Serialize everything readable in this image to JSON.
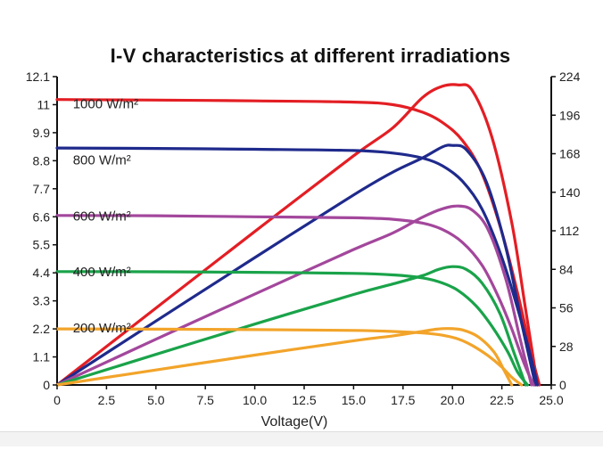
{
  "chart_data": {
    "type": "line",
    "title": "I-V characteristics at different irradiations",
    "xlabel": "Voltage(V)",
    "ylabel": "",
    "y2label": "",
    "xlim": [
      0,
      25
    ],
    "ylim": [
      0,
      12.1
    ],
    "y2lim": [
      0,
      224
    ],
    "x_ticks": [
      "0",
      "2.5",
      "5.0",
      "7.5",
      "10.0",
      "12.5",
      "15.0",
      "17.5",
      "20.0",
      "22.5",
      "25.0"
    ],
    "y_ticks": [
      "0",
      "1.1",
      "2.2",
      "3.3",
      "4.4",
      "5.5",
      "6.6",
      "7.7",
      "8.8",
      "9.9",
      "11",
      "12.1"
    ],
    "y2_ticks": [
      "0",
      "28",
      "56",
      "84",
      "112",
      "140",
      "168",
      "196",
      "224"
    ],
    "grid": false,
    "legend": "inline labels",
    "series": [
      {
        "name": "1000 W/m²",
        "color": "#e31e24",
        "label_at": {
          "x": 0.8,
          "y": 11.0
        },
        "iv_curve": {
          "x": [
            0,
            5,
            10,
            15,
            17,
            18.5,
            19.5,
            20.5,
            21.5,
            22.5,
            23.3,
            24.0,
            24.4
          ],
          "y": [
            11.2,
            11.18,
            11.15,
            11.1,
            11.0,
            10.7,
            10.3,
            9.6,
            8.3,
            6.0,
            3.6,
            1.2,
            0
          ]
        },
        "power_curve": {
          "x": [
            0,
            5,
            10,
            15,
            17,
            18.5,
            19.5,
            20.3,
            21.0,
            22.0,
            23.0,
            23.7,
            24.3
          ],
          "y": [
            0,
            55.9,
            111.5,
            166.5,
            187.0,
            209.0,
            217.0,
            218.0,
            214.0,
            180.0,
            118.0,
            55.0,
            0
          ]
        }
      },
      {
        "name": "800 W/m²",
        "color": "#1f2a8c",
        "label_at": {
          "x": 0.8,
          "y": 8.8
        },
        "iv_curve": {
          "x": [
            0,
            5,
            10,
            15,
            17,
            18.5,
            19.5,
            20.5,
            21.5,
            22.5,
            23.3,
            24.0,
            24.3
          ],
          "y": [
            9.3,
            9.28,
            9.25,
            9.2,
            9.1,
            8.9,
            8.6,
            8.0,
            6.9,
            5.0,
            3.0,
            1.0,
            0
          ]
        },
        "power_curve": {
          "x": [
            0,
            5,
            10,
            15,
            17,
            18.5,
            19.5,
            20.0,
            20.7,
            21.7,
            22.7,
            23.5,
            24.2
          ],
          "y": [
            0,
            46.4,
            92.5,
            138.0,
            154.7,
            165.0,
            173.0,
            174.0,
            171.0,
            148.0,
            100.0,
            45.0,
            0
          ]
        }
      },
      {
        "name": "600 W/m²",
        "color": "#a3479c",
        "label_at": {
          "x": 0.8,
          "y": 6.6
        },
        "iv_curve": {
          "x": [
            0,
            5,
            10,
            15,
            17,
            18.5,
            19.5,
            20.5,
            21.5,
            22.3,
            23.0,
            23.6,
            24.1
          ],
          "y": [
            6.65,
            6.64,
            6.6,
            6.56,
            6.5,
            6.35,
            6.1,
            5.6,
            4.7,
            3.5,
            2.2,
            0.9,
            0
          ]
        },
        "power_curve": {
          "x": [
            0,
            5,
            10,
            15,
            17,
            18.5,
            19.5,
            20.3,
            21.0,
            21.8,
            22.7,
            23.4,
            24.0
          ],
          "y": [
            0,
            33.2,
            66.0,
            98.4,
            110.5,
            122.0,
            128.0,
            130.0,
            127.0,
            113.0,
            77.0,
            35.0,
            0
          ]
        }
      },
      {
        "name": "400 W/m²",
        "color": "#1aa34a",
        "label_at": {
          "x": 0.8,
          "y": 4.4
        },
        "iv_curve": {
          "x": [
            0,
            5,
            10,
            15,
            17,
            18.5,
            19.5,
            20.3,
            21.2,
            22.0,
            22.8,
            23.3,
            23.8
          ],
          "y": [
            4.45,
            4.44,
            4.42,
            4.38,
            4.32,
            4.2,
            4.0,
            3.7,
            3.1,
            2.3,
            1.3,
            0.5,
            0
          ]
        },
        "power_curve": {
          "x": [
            0,
            5,
            10,
            15,
            17,
            18.5,
            19.3,
            20.0,
            20.7,
            21.5,
            22.4,
            23.1,
            23.7
          ],
          "y": [
            0,
            22.2,
            44.2,
            65.7,
            73.4,
            79.5,
            84.0,
            86.0,
            84.0,
            74.0,
            52.0,
            24.0,
            0
          ]
        }
      },
      {
        "name": "200 W/m²",
        "color": "#f2a42a",
        "label_at": {
          "x": 0.8,
          "y": 2.2
        },
        "iv_curve": {
          "x": [
            0,
            5,
            10,
            15,
            17,
            18.5,
            19.5,
            20.3,
            21.0,
            21.8,
            22.5,
            23.0,
            23.5
          ],
          "y": [
            2.2,
            2.19,
            2.17,
            2.14,
            2.1,
            2.04,
            1.95,
            1.8,
            1.55,
            1.15,
            0.7,
            0.3,
            0
          ]
        },
        "power_curve": {
          "x": [
            0,
            5,
            10,
            15,
            17,
            18.5,
            19.2,
            19.8,
            20.5,
            21.3,
            22.1,
            22.6,
            23.0
          ],
          "y": [
            0,
            10.9,
            21.7,
            32.1,
            35.7,
            39.0,
            40.5,
            41.0,
            40.0,
            35.0,
            24.0,
            11.0,
            0
          ]
        }
      }
    ]
  }
}
